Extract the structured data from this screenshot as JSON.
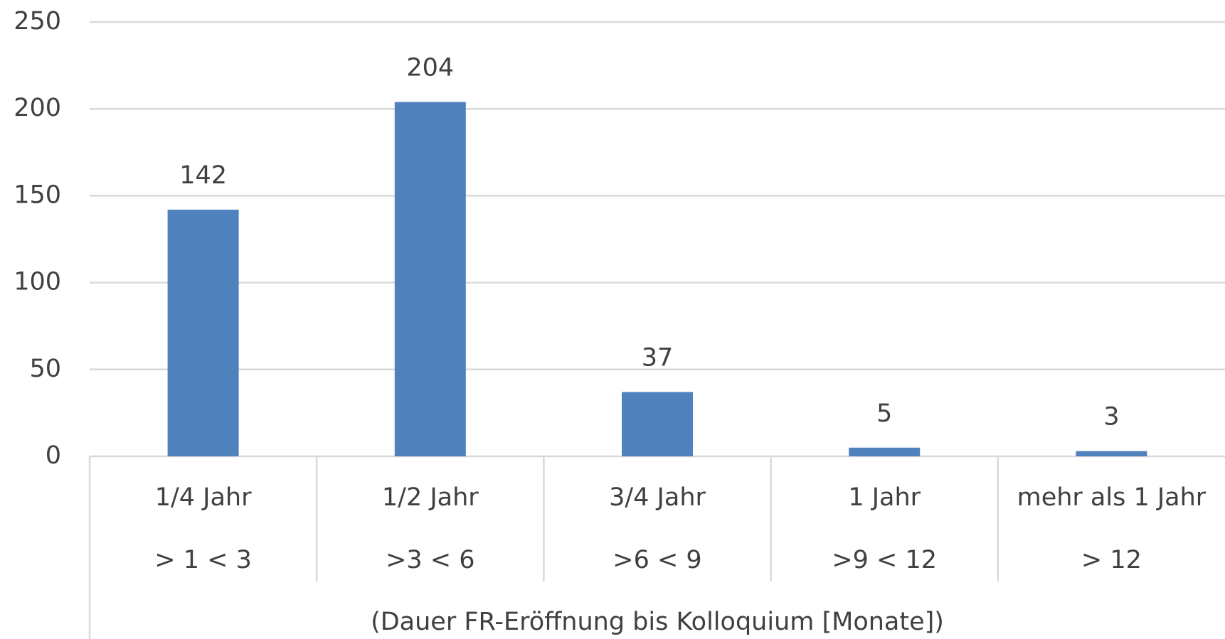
{
  "chart_data": {
    "type": "bar",
    "categories": [
      "1/4 Jahr",
      "1/2 Jahr",
      "3/4 Jahr",
      "1 Jahr",
      "mehr als 1 Jahr"
    ],
    "subcategories": [
      "> 1 < 3",
      ">3 < 6",
      ">6 < 9",
      ">9 < 12",
      "> 12"
    ],
    "x_label": "(Dauer FR-Eröffnung bis Kolloquium [Monate])",
    "values": [
      142,
      204,
      37,
      5,
      3
    ],
    "color": "#4f81bd",
    "ylim": [
      0,
      250
    ],
    "yticks": [
      0,
      50,
      100,
      150,
      200,
      250
    ],
    "grid": true
  }
}
